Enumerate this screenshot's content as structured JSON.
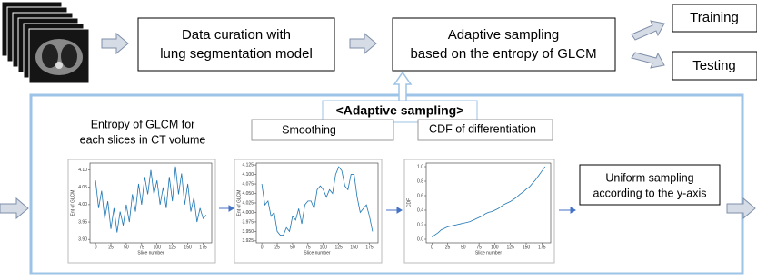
{
  "pipeline": {
    "data_curation": [
      "Data curation with",
      "lung segmentation model"
    ],
    "adaptive_sampling": [
      "Adaptive sampling",
      "based on the entropy of GLCM"
    ],
    "training": "Training",
    "testing": "Testing"
  },
  "detail": {
    "title": "<Adaptive sampling>",
    "entropy_label": [
      "Entropy of GLCM for",
      "each slices in CT volume"
    ],
    "smoothing": "Smoothing",
    "cdf_label": "CDF of differentiation",
    "uniform_sampling": [
      "Uniform sampling",
      "according to the y-axis"
    ]
  },
  "chart_data": [
    {
      "type": "line",
      "xlabel": "Slice number",
      "ylabel": "Ent of GLCM",
      "color": "#1f77b4",
      "x": [
        0,
        5,
        10,
        15,
        20,
        25,
        30,
        35,
        40,
        45,
        50,
        55,
        60,
        65,
        70,
        75,
        80,
        85,
        90,
        95,
        100,
        105,
        110,
        115,
        120,
        125,
        130,
        135,
        140,
        145,
        150,
        155,
        160,
        165,
        170,
        175,
        180
      ],
      "values": [
        4.07,
        3.99,
        4.04,
        3.96,
        4.01,
        3.93,
        3.99,
        3.92,
        3.98,
        3.94,
        4.0,
        3.95,
        4.03,
        3.98,
        4.06,
        4.0,
        4.08,
        4.03,
        4.1,
        4.03,
        4.07,
        4.0,
        4.05,
        3.99,
        4.08,
        4.01,
        4.11,
        4.03,
        4.09,
        4.0,
        4.06,
        3.98,
        4.02,
        3.95,
        3.99,
        3.96,
        3.97
      ],
      "xlim": [
        -9,
        189
      ],
      "xticks": [
        0,
        25,
        50,
        75,
        100,
        125,
        150,
        175
      ],
      "ylim": [
        3.89,
        4.12
      ],
      "yticks": [
        {
          "value": 3.9,
          "label": "3.90"
        },
        {
          "value": 3.95,
          "label": "3.95"
        },
        {
          "value": 4.0,
          "label": "4.00"
        },
        {
          "value": 4.05,
          "label": "4.05"
        },
        {
          "value": 4.1,
          "label": "4.10"
        }
      ]
    },
    {
      "type": "line",
      "xlabel": "Slice number",
      "ylabel": "Ent of GLCM",
      "color": "#1f77b4",
      "x": [
        0,
        5,
        10,
        15,
        20,
        25,
        30,
        35,
        40,
        45,
        50,
        55,
        60,
        65,
        70,
        75,
        80,
        85,
        90,
        95,
        100,
        105,
        110,
        115,
        120,
        125,
        130,
        135,
        140,
        145,
        150,
        155,
        160,
        165,
        170,
        175,
        180
      ],
      "values": [
        4.075,
        4.02,
        4.03,
        3.99,
        4.0,
        3.95,
        3.94,
        3.94,
        3.96,
        3.95,
        3.99,
        3.98,
        4.01,
        3.97,
        4.02,
        4.03,
        4.03,
        4.01,
        4.06,
        4.07,
        4.06,
        4.04,
        4.06,
        4.05,
        4.1,
        4.12,
        4.11,
        4.07,
        4.06,
        4.1,
        4.1,
        4.04,
        4.0,
        4.01,
        4.02,
        3.99,
        3.95
      ],
      "xlim": [
        -9,
        189
      ],
      "xticks": [
        0,
        25,
        50,
        75,
        100,
        125,
        150,
        175
      ],
      "ylim": [
        3.92,
        4.13
      ],
      "yticks": [
        {
          "value": 3.925,
          "label": "3.925"
        },
        {
          "value": 3.95,
          "label": "3.950"
        },
        {
          "value": 3.975,
          "label": "3.975"
        },
        {
          "value": 4.0,
          "label": "4.000"
        },
        {
          "value": 4.025,
          "label": "4.025"
        },
        {
          "value": 4.05,
          "label": "4.050"
        },
        {
          "value": 4.075,
          "label": "4.075"
        },
        {
          "value": 4.1,
          "label": "4.100"
        },
        {
          "value": 4.125,
          "label": "4.125"
        }
      ]
    },
    {
      "type": "line",
      "xlabel": "Slice number",
      "ylabel": "CDF",
      "color": "#1f77b4",
      "x": [
        0,
        5,
        10,
        15,
        20,
        25,
        30,
        35,
        40,
        45,
        50,
        55,
        60,
        65,
        70,
        75,
        80,
        85,
        90,
        95,
        100,
        105,
        110,
        115,
        120,
        125,
        130,
        135,
        140,
        145,
        150,
        155,
        160,
        165,
        170,
        175,
        180
      ],
      "values": [
        0.03,
        0.06,
        0.09,
        0.13,
        0.15,
        0.17,
        0.18,
        0.19,
        0.2,
        0.21,
        0.22,
        0.23,
        0.24,
        0.26,
        0.28,
        0.3,
        0.32,
        0.35,
        0.37,
        0.38,
        0.4,
        0.42,
        0.45,
        0.48,
        0.5,
        0.52,
        0.55,
        0.58,
        0.62,
        0.65,
        0.69,
        0.72,
        0.77,
        0.82,
        0.88,
        0.94,
        1.0
      ],
      "xlim": [
        -9,
        189
      ],
      "xticks": [
        0,
        25,
        50,
        75,
        100,
        125,
        150,
        175
      ],
      "ylim": [
        -0.05,
        1.05
      ],
      "yticks": [
        {
          "value": 0.0,
          "label": "0.0"
        },
        {
          "value": 0.2,
          "label": "0.2"
        },
        {
          "value": 0.4,
          "label": "0.4"
        },
        {
          "value": 0.6,
          "label": "0.6"
        },
        {
          "value": 0.8,
          "label": "0.8"
        },
        {
          "value": 1.0,
          "label": "1.0"
        }
      ]
    }
  ]
}
